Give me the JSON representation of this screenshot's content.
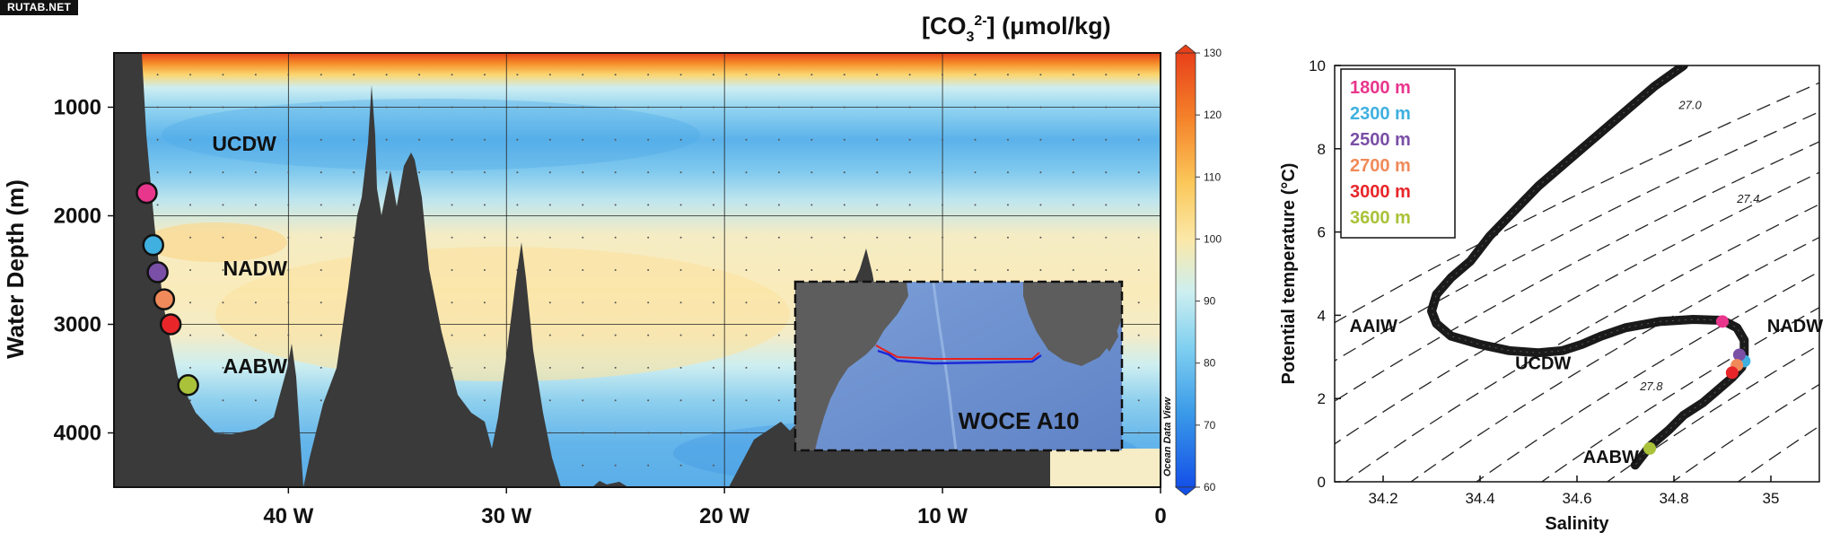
{
  "watermark": "RUTAB.NET",
  "chart_data": [
    {
      "type": "heatmap",
      "title": "[CO3 2-] (μmol/kg)",
      "title_parts": {
        "base": "[CO",
        "sub": "3",
        "sup": "2-",
        "tail": "] (μmol/kg)"
      },
      "ylabel": "Water Depth (m)",
      "x_ticks": [
        "40 W",
        "30 W",
        "20 W",
        "10 W",
        "0"
      ],
      "x_tick_values": [
        -40,
        -30,
        -20,
        -10,
        0
      ],
      "xlim": [
        -48,
        0
      ],
      "y_ticks": [
        "1000",
        "2000",
        "3000",
        "4000"
      ],
      "y_tick_values": [
        1000,
        2000,
        3000,
        4000
      ],
      "ylim": [
        500,
        4500
      ],
      "grid": true,
      "colorbar": {
        "ticks": [
          "130",
          "120",
          "110",
          "100",
          "90",
          "80",
          "70",
          "60"
        ],
        "tick_values": [
          130,
          120,
          110,
          100,
          90,
          80,
          70,
          60
        ],
        "range": [
          60,
          130
        ],
        "label": "Ocean Data View"
      },
      "water_mass_labels": [
        {
          "text": "UCDW",
          "lon": -43.5,
          "depth": 1400
        },
        {
          "text": "NADW",
          "lon": -43,
          "depth": 2550
        },
        {
          "text": "AABW",
          "lon": -43,
          "depth": 3450
        }
      ],
      "stations": [
        {
          "depth_label": "1800 m",
          "lon": -46.5,
          "depth": 1790,
          "color": "#e8368c"
        },
        {
          "depth_label": "2300 m",
          "lon": -46.2,
          "depth": 2270,
          "color": "#3fb0e0"
        },
        {
          "depth_label": "2500 m",
          "lon": -46.0,
          "depth": 2520,
          "color": "#7a4fa6"
        },
        {
          "depth_label": "2700 m",
          "lon": -45.7,
          "depth": 2770,
          "color": "#f08a5a"
        },
        {
          "depth_label": "3000 m",
          "lon": -45.4,
          "depth": 3000,
          "color": "#e8262a"
        },
        {
          "depth_label": "3600 m",
          "lon": -44.6,
          "depth": 3560,
          "color": "#a9c23a"
        }
      ],
      "inset_map": {
        "label": "WOCE A10"
      }
    },
    {
      "type": "scatter",
      "xlabel": "Salinity",
      "ylabel": "Potential temperature (°C)",
      "xlim": [
        34.1,
        35.1
      ],
      "ylim": [
        0,
        10
      ],
      "x_ticks": [
        "34.2",
        "34.4",
        "34.6",
        "34.8",
        "35"
      ],
      "x_tick_values": [
        34.2,
        34.4,
        34.6,
        34.8,
        35.0
      ],
      "y_ticks": [
        "0",
        "2",
        "4",
        "6",
        "8",
        "10"
      ],
      "y_tick_values": [
        0,
        2,
        4,
        6,
        8,
        10
      ],
      "isopycnal_labels": [
        "27.0",
        "27.4",
        "27.8"
      ],
      "water_mass_labels": [
        {
          "text": "AAIW",
          "salinity": 34.18,
          "temp": 3.6
        },
        {
          "text": "UCDW",
          "salinity": 34.53,
          "temp": 2.7
        },
        {
          "text": "NADW",
          "salinity": 35.05,
          "temp": 3.6
        },
        {
          "text": "AABW",
          "salinity": 34.67,
          "temp": 0.45
        }
      ],
      "series": [
        {
          "x": [
            34.82,
            34.76,
            34.7,
            34.64,
            34.58,
            34.52,
            34.47,
            34.42,
            34.38,
            34.34,
            34.31,
            34.3,
            34.31,
            34.34,
            34.4,
            34.46,
            34.52,
            34.57,
            34.61,
            34.65,
            34.7,
            34.77,
            34.84,
            34.9,
            34.93,
            34.945,
            34.945,
            34.94,
            34.92,
            34.89,
            34.86,
            34.82,
            34.79,
            34.75,
            34.72
          ],
          "y": [
            10.0,
            9.5,
            8.9,
            8.3,
            7.7,
            7.1,
            6.5,
            5.9,
            5.3,
            4.9,
            4.5,
            4.1,
            3.8,
            3.5,
            3.3,
            3.15,
            3.1,
            3.15,
            3.3,
            3.5,
            3.7,
            3.85,
            3.9,
            3.88,
            3.7,
            3.4,
            3.05,
            2.75,
            2.5,
            2.2,
            1.9,
            1.6,
            1.25,
            0.85,
            0.4
          ]
        }
      ],
      "legend": {
        "placement": "top-left",
        "entries": [
          {
            "label": "1800 m",
            "color": "#e8368c",
            "salinity": 34.9,
            "temp": 3.85
          },
          {
            "label": "2300 m",
            "color": "#3fb0e0",
            "salinity": 34.945,
            "temp": 2.9
          },
          {
            "label": "2500 m",
            "color": "#7a4fa6",
            "salinity": 34.935,
            "temp": 3.05
          },
          {
            "label": "2700 m",
            "color": "#f08a5a",
            "salinity": 34.93,
            "temp": 2.8
          },
          {
            "label": "3000 m",
            "color": "#e8262a",
            "salinity": 34.92,
            "temp": 2.62
          },
          {
            "label": "3600 m",
            "color": "#a9c23a",
            "salinity": 34.75,
            "temp": 0.8
          }
        ]
      }
    }
  ]
}
